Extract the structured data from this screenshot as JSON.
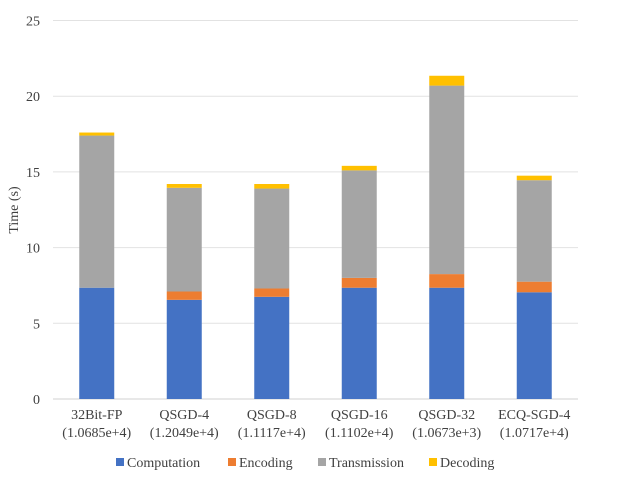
{
  "chart_data": {
    "type": "bar",
    "stacked": true,
    "title": "",
    "xlabel": "",
    "ylabel": "Time (s)",
    "ylim": [
      0,
      25
    ],
    "yticks": [
      0,
      5,
      10,
      15,
      20,
      25
    ],
    "grid": true,
    "legend_position": "bottom",
    "categories": [
      [
        "32Bit-FP",
        "(1.0685e+4)"
      ],
      [
        "QSGD-4",
        "(1.2049e+4)"
      ],
      [
        "QSGD-8",
        "(1.1117e+4)"
      ],
      [
        "QSGD-16",
        "(1.1102e+4)"
      ],
      [
        "QSGD-32",
        "(1.0673e+3)"
      ],
      [
        "ECQ-SGD-4",
        "(1.0717e+4)"
      ]
    ],
    "series": [
      {
        "name": "Computation",
        "color": "#4472c4",
        "values": [
          7.35,
          6.55,
          6.75,
          7.35,
          7.35,
          7.05
        ]
      },
      {
        "name": "Encoding",
        "color": "#ed7d31",
        "values": [
          0.0,
          0.55,
          0.55,
          0.65,
          0.9,
          0.7
        ]
      },
      {
        "name": "Transmission",
        "color": "#a5a5a5",
        "values": [
          10.05,
          6.85,
          6.6,
          7.1,
          12.45,
          6.7
        ]
      },
      {
        "name": "Decoding",
        "color": "#ffc000",
        "values": [
          0.2,
          0.25,
          0.3,
          0.3,
          0.65,
          0.3
        ]
      }
    ]
  }
}
